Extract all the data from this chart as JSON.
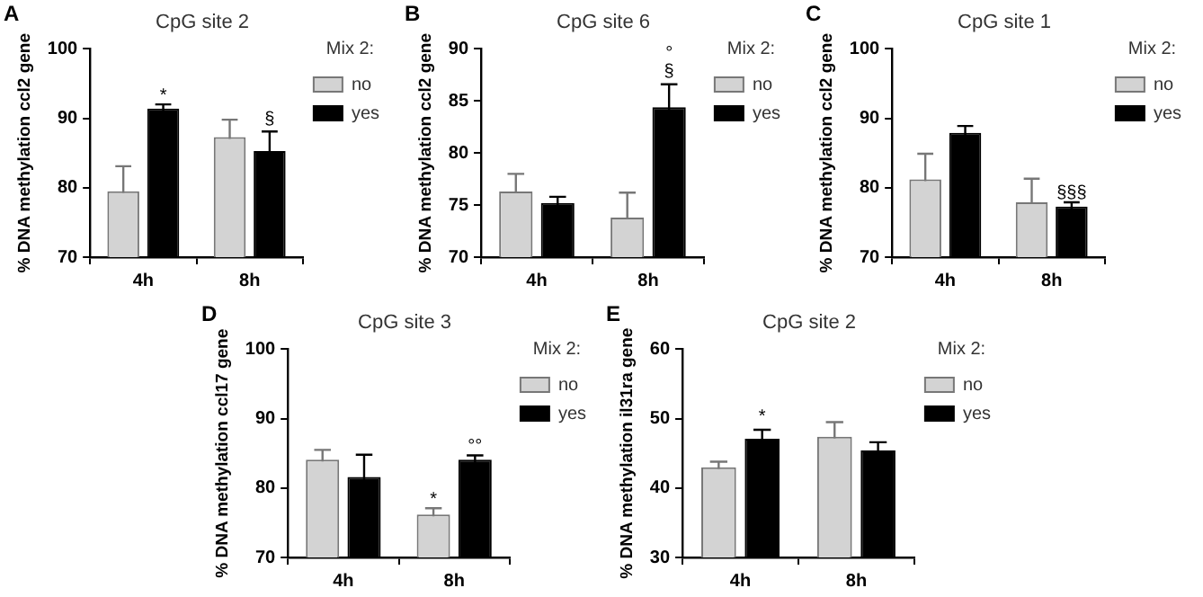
{
  "chart_data": [
    {
      "type": "bar",
      "title": "CpG site 2",
      "ylabel": "% DNA methylation ccl2 gene",
      "legend_title": "Mix 2:",
      "legend": "right",
      "categories": [
        "4h",
        "8h"
      ],
      "ylim": [
        70,
        100
      ],
      "yticks": [
        70,
        80,
        90,
        100
      ],
      "series": [
        {
          "name": "no",
          "color": "#d3d3d3",
          "values": [
            79.5,
            87.3
          ],
          "errors": [
            3.6,
            2.5
          ]
        },
        {
          "name": "yes",
          "color": "#000000",
          "values": [
            91.4,
            85.3
          ],
          "errors": [
            0.6,
            2.8
          ]
        }
      ],
      "annotations": [
        "A",
        {
          "text": "*",
          "x": "4h",
          "y": 92.5
        },
        "§"
      ]
    },
    {
      "type": "bar",
      "title": "CpG site 6",
      "ylabel": "% DNA methylation ccl2 gene",
      "legend_title": "Mix 2:",
      "legend": "right",
      "categories": [
        "4h",
        "8h"
      ],
      "ylim": [
        70,
        90
      ],
      "yticks": [
        70,
        75,
        80,
        85,
        90
      ],
      "series": [
        {
          "name": "no",
          "color": "#d3d3d3",
          "values": [
            76.3,
            73.8
          ],
          "errors": [
            1.7,
            2.4
          ]
        },
        {
          "name": "yes",
          "color": "#000000",
          "values": [
            75.2,
            84.4
          ],
          "errors": [
            0.6,
            2.2
          ]
        }
      ],
      "annotations": [
        "B",
        "§",
        "°"
      ]
    },
    {
      "type": "bar",
      "title": "CpG site 1",
      "ylabel": "% DNA methylation ccl2 gene",
      "legend_title": "Mix 2:",
      "legend": "right",
      "categories": [
        "4h",
        "8h"
      ],
      "ylim": [
        70,
        100
      ],
      "yticks": [
        70,
        80,
        90,
        100
      ],
      "series": [
        {
          "name": "no",
          "color": "#d3d3d3",
          "values": [
            81.2,
            77.9
          ],
          "errors": [
            3.7,
            3.4
          ]
        },
        {
          "name": "yes",
          "color": "#000000",
          "values": [
            87.9,
            77.3
          ],
          "errors": [
            1.0,
            0.6
          ]
        }
      ],
      "annotations": [
        "C",
        {
          "text": "§§§",
          "x": "8h",
          "y": 78.5
        }
      ]
    },
    {
      "type": "bar",
      "title": "CpG site 3",
      "ylabel": "% DNA methylation ccl17 gene",
      "legend_title": "Mix 2:",
      "legend": "right",
      "categories": [
        "4h",
        "8h"
      ],
      "ylim": [
        70,
        100
      ],
      "yticks": [
        70,
        80,
        90,
        100
      ],
      "series": [
        {
          "name": "no",
          "color": "#d3d3d3",
          "values": [
            84.1,
            76.2
          ],
          "errors": [
            1.4,
            0.9
          ]
        },
        {
          "name": "yes",
          "color": "#000000",
          "values": [
            81.6,
            84.1
          ],
          "errors": [
            3.2,
            0.6
          ]
        }
      ],
      "annotations": [
        "D",
        {
          "text": "*",
          "x": "8h",
          "y": 77.6
        },
        {
          "text": "°°",
          "x": "8h",
          "y": 85.2
        }
      ]
    },
    {
      "type": "bar",
      "title": "CpG site 2",
      "ylabel": "% DNA methylation il31ra gene",
      "legend_title": "Mix 2:",
      "legend": "right",
      "categories": [
        "4h",
        "8h"
      ],
      "ylim": [
        30,
        60
      ],
      "yticks": [
        30,
        40,
        50,
        60
      ],
      "series": [
        {
          "name": "no",
          "color": "#d3d3d3",
          "values": [
            43.0,
            47.4
          ],
          "errors": [
            0.8,
            2.1
          ]
        },
        {
          "name": "yes",
          "color": "#000000",
          "values": [
            47.1,
            45.4
          ],
          "errors": [
            1.3,
            1.2
          ]
        }
      ],
      "annotations": [
        "E",
        "*"
      ]
    }
  ]
}
